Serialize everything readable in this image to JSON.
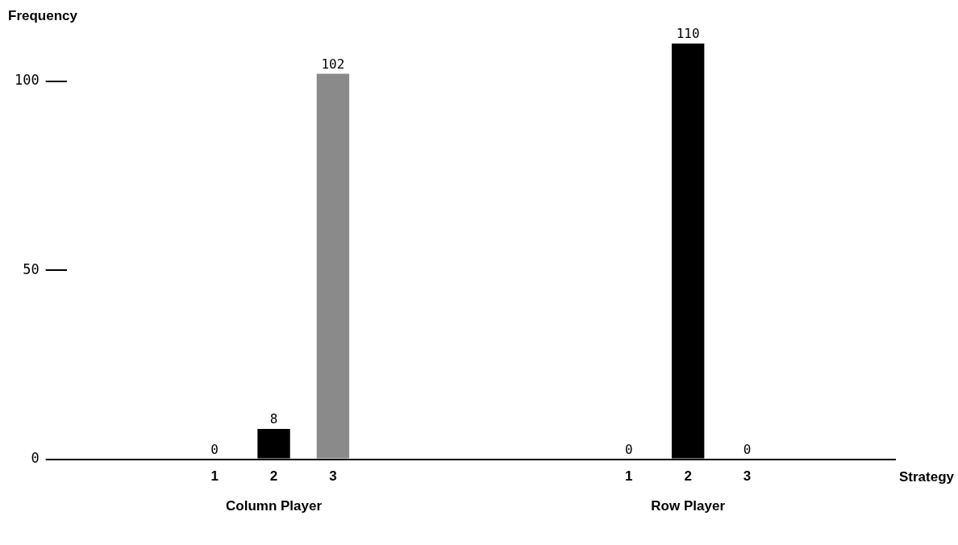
{
  "chart_data": {
    "type": "bar",
    "xlabel": "Strategy",
    "ylabel": "Frequency",
    "categories": [
      null,
      null,
      "1",
      "2",
      "3",
      null,
      null,
      null,
      null,
      "1",
      "2",
      "3",
      null,
      null
    ],
    "values": [
      null,
      null,
      0,
      8,
      102,
      null,
      null,
      null,
      null,
      0,
      110,
      0,
      null,
      null
    ],
    "colors": [
      "#000000",
      "#000000",
      "#000000",
      "#000000",
      "#8a8a8a",
      "#000000",
      "#000000",
      "#000000",
      "#000000",
      "#000000",
      "#000000",
      "#000000",
      "#000000",
      "#000000"
    ],
    "ylim": [
      0,
      110
    ],
    "yticks": [
      0,
      50,
      100
    ],
    "grid": false,
    "data_labels": true,
    "annotations": [
      "Column Player",
      "Row Player"
    ]
  }
}
